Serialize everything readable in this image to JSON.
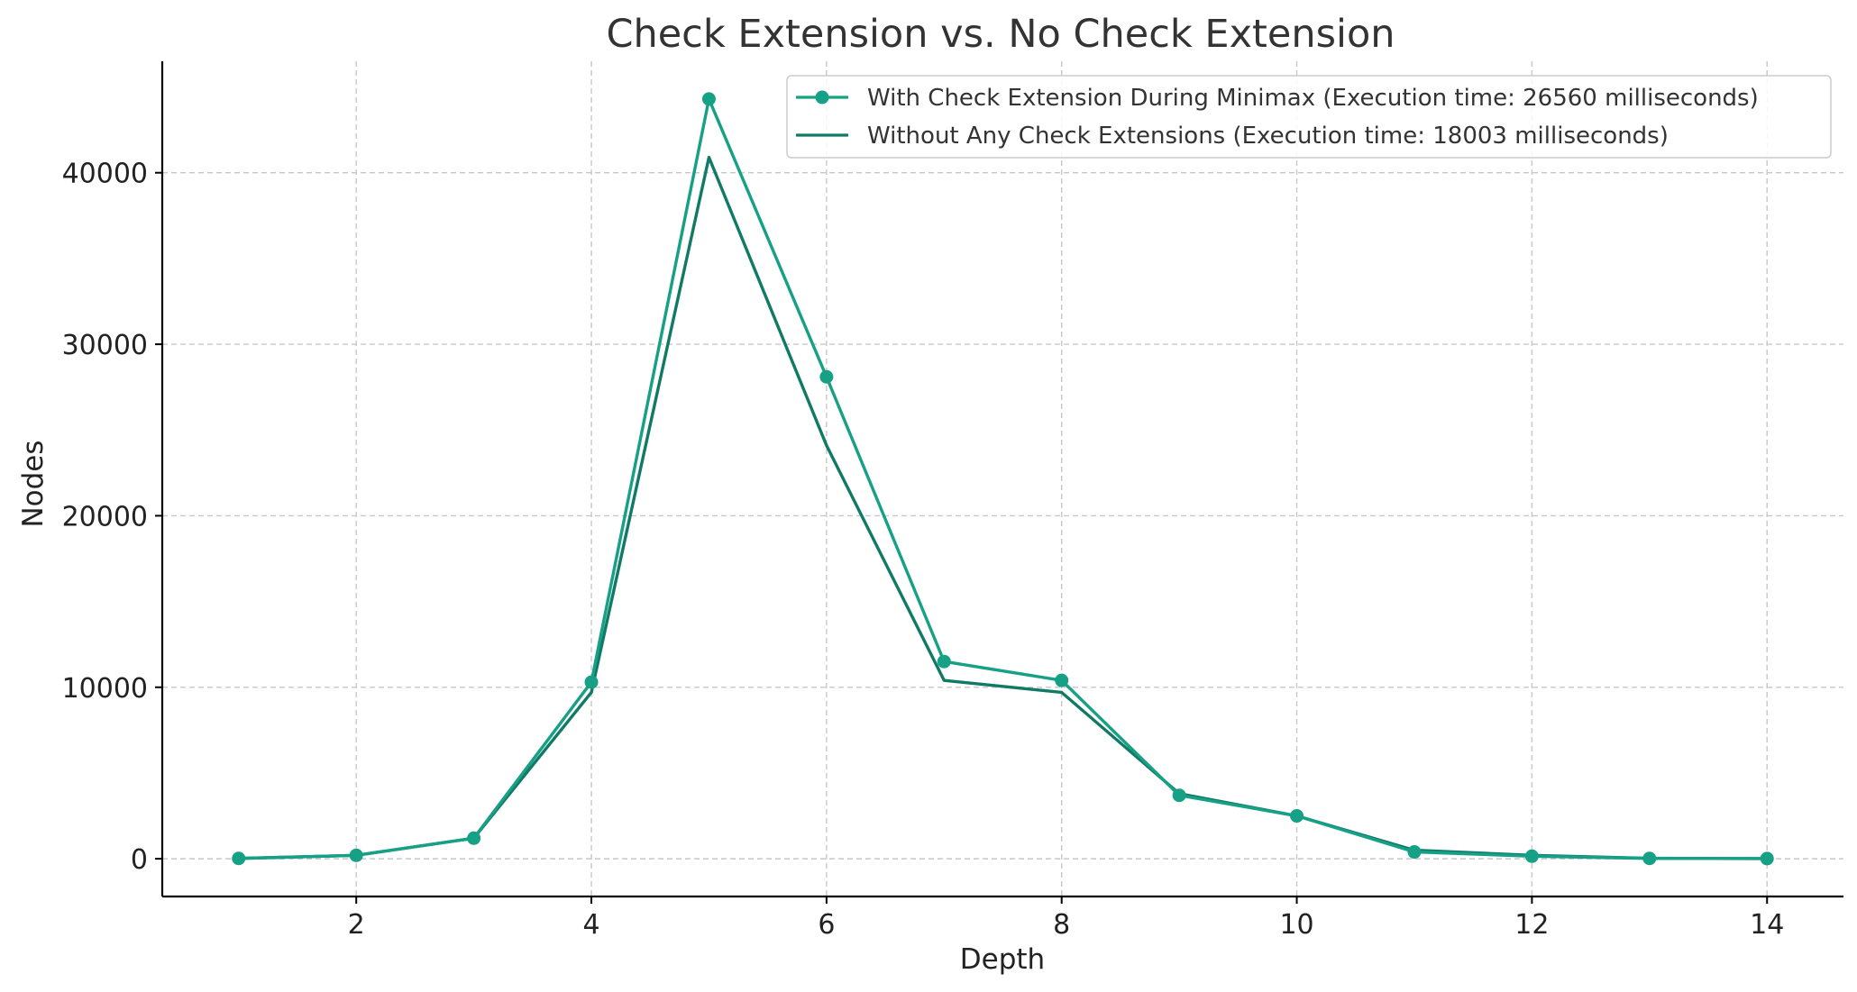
{
  "colors": {
    "series1": "#16a085",
    "series2": "#117a65",
    "grid": "#c8c8c8"
  },
  "chart_data": {
    "type": "line",
    "title": "Check Extension vs. No Check Extension",
    "xlabel": "Depth",
    "ylabel": "Nodes",
    "xlim": [
      0.35,
      14.65
    ],
    "ylim": [
      -2200,
      46500
    ],
    "xticks": [
      2,
      4,
      6,
      8,
      10,
      12,
      14
    ],
    "yticks": [
      0,
      10000,
      20000,
      30000,
      40000
    ],
    "grid": true,
    "legend_position": "top-right",
    "x": [
      1,
      2,
      3,
      4,
      5,
      6,
      7,
      8,
      9,
      10,
      11,
      12,
      13,
      14
    ],
    "series": [
      {
        "name": "With Check Extension During Minimax (Execution time: 26560 milliseconds)",
        "values": [
          20,
          200,
          1200,
          10300,
          44300,
          28100,
          11500,
          10400,
          3700,
          2500,
          400,
          150,
          20,
          10
        ],
        "marker": "circle",
        "color_key": "series1"
      },
      {
        "name": "Without Any Check Extensions (Execution time: 18003 milliseconds)",
        "values": [
          20,
          200,
          1200,
          9700,
          40900,
          24100,
          10400,
          9700,
          3800,
          2500,
          500,
          200,
          30,
          10
        ],
        "marker": "none",
        "color_key": "series2"
      }
    ]
  }
}
